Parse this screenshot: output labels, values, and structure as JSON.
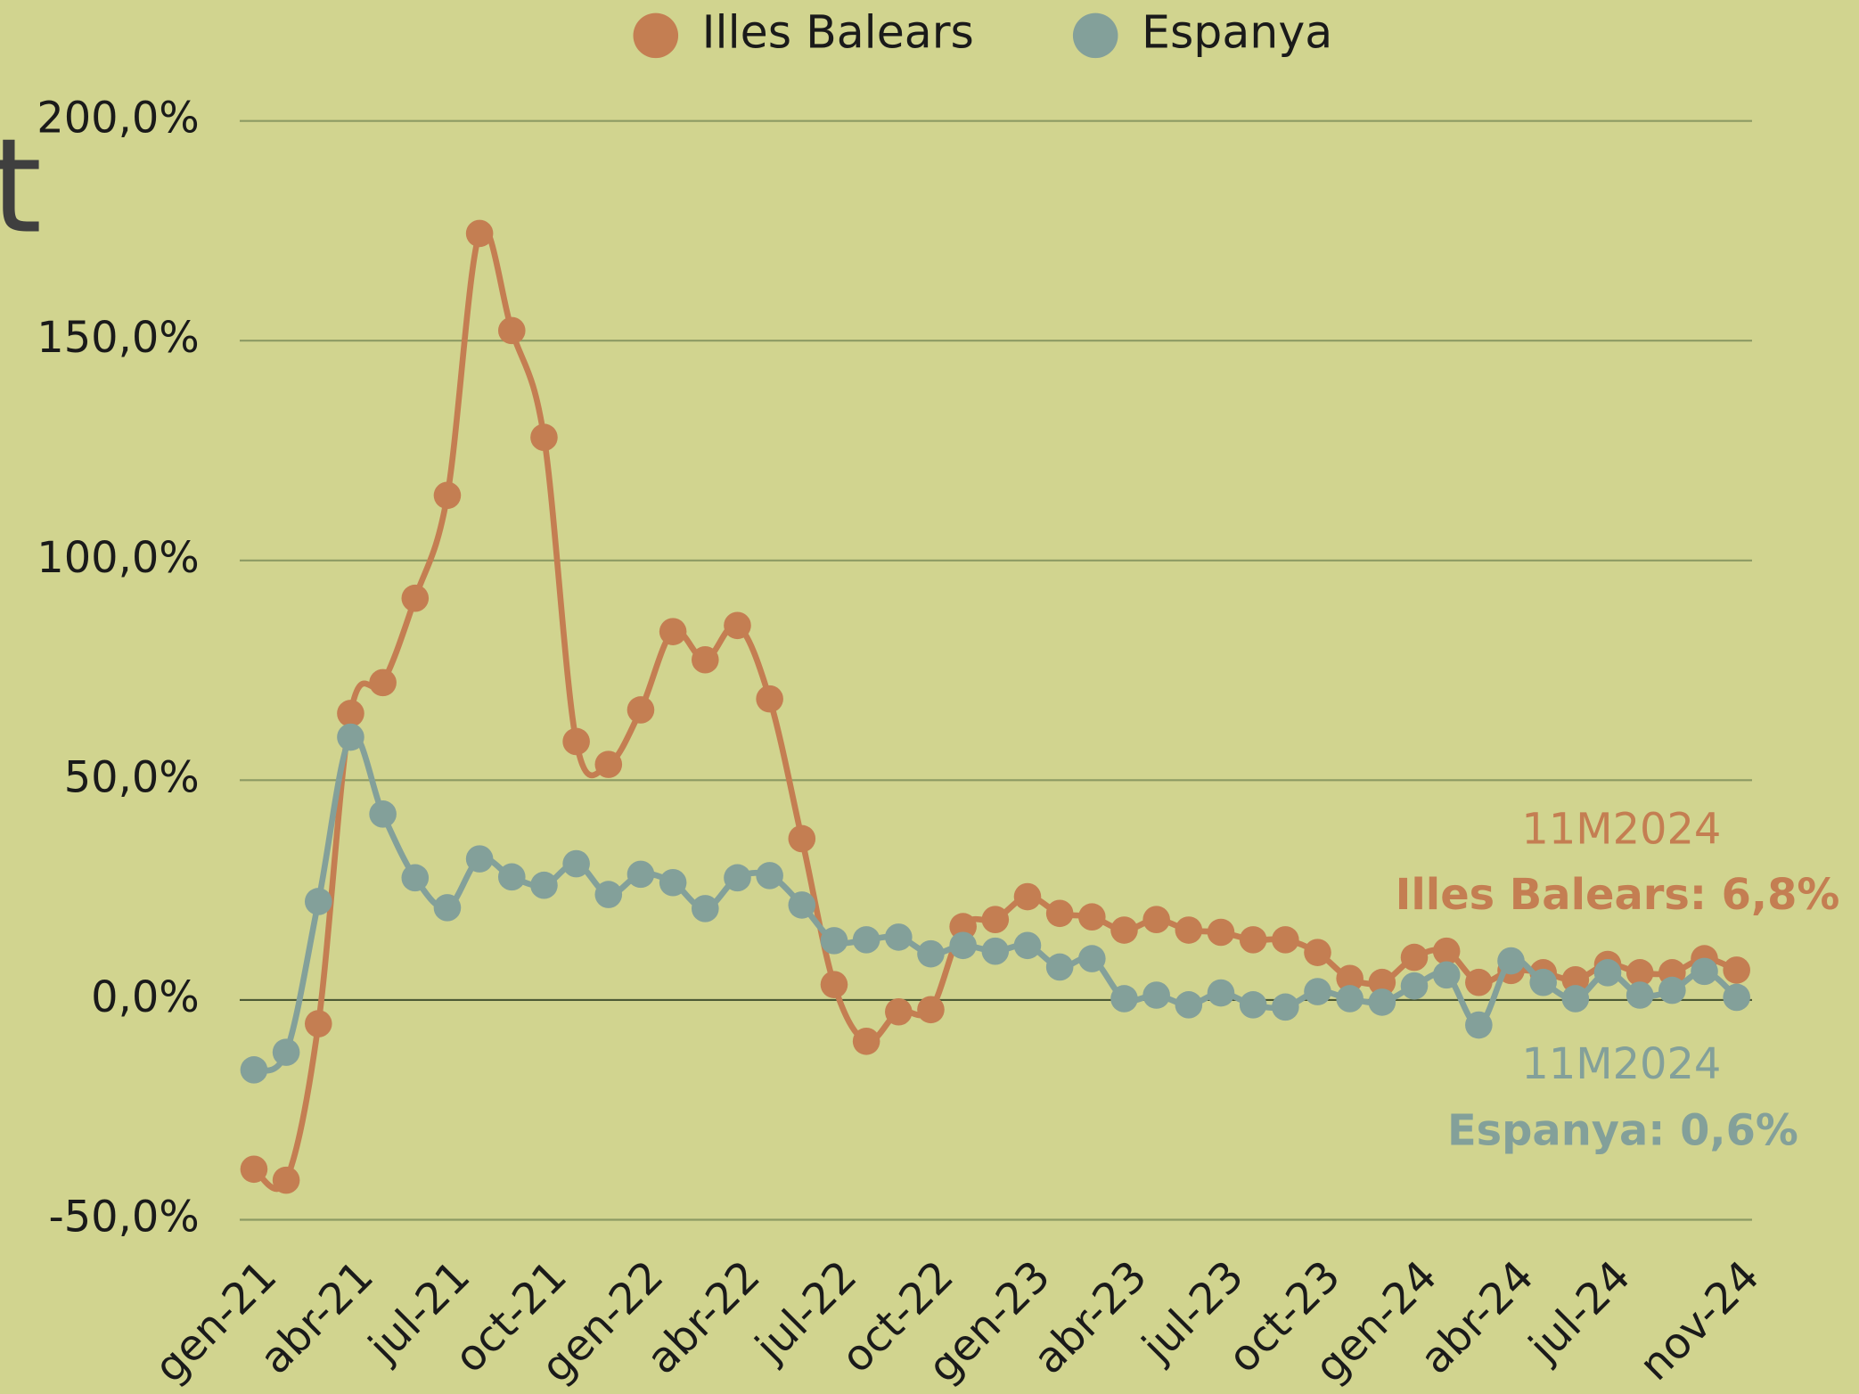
{
  "chart_data": {
    "type": "line",
    "title": "t",
    "categories": [
      "gen-21",
      null,
      null,
      "abr-21",
      null,
      null,
      "jul-21",
      null,
      null,
      "oct-21",
      null,
      null,
      "gen-22",
      null,
      null,
      "abr-22",
      null,
      null,
      "jul-22",
      null,
      null,
      "oct-22",
      null,
      null,
      "gen-23",
      null,
      null,
      "abr-23",
      null,
      null,
      "jul-23",
      null,
      null,
      "oct-23",
      null,
      null,
      "gen-24",
      null,
      null,
      "abr-24",
      null,
      null,
      "jul-24",
      null,
      null,
      null,
      "nov-24"
    ],
    "series": [
      {
        "name": "Illes Balears",
        "color": "#c47e52",
        "values": [
          -38.5,
          -41,
          -5.4,
          65.2,
          72.2,
          91.4,
          114.8,
          174.4,
          152.3,
          128,
          58.8,
          53.6,
          66,
          83.8,
          77.4,
          85.2,
          68.5,
          36.7,
          3.5,
          -9.4,
          -2.7,
          -2.2,
          16.7,
          18.3,
          23.5,
          19.7,
          18.9,
          15.9,
          18.3,
          15.9,
          15.4,
          13.7,
          13.7,
          10.8,
          4.9,
          4.0,
          9.7,
          11.1,
          4.0,
          6.7,
          6.2,
          4.6,
          8.1,
          6.2,
          6.2,
          9.4,
          6.8
        ]
      },
      {
        "name": "Espanya",
        "color": "#83a09a",
        "values": [
          -15.9,
          -11.9,
          22.4,
          59.8,
          42.3,
          27.8,
          21,
          32.1,
          28,
          26.1,
          31,
          24,
          28.6,
          26.7,
          20.8,
          27.8,
          28.3,
          21.6,
          13.5,
          13.7,
          14.3,
          10.5,
          12.4,
          11.1,
          12.4,
          7.5,
          9.4,
          0.3,
          1.1,
          -1.1,
          1.6,
          -1.1,
          -1.6,
          1.9,
          0.3,
          -0.5,
          3.2,
          5.7,
          -5.7,
          8.9,
          4,
          0.3,
          6.2,
          1.1,
          2.2,
          6.5,
          0.6
        ]
      }
    ],
    "ylim": [
      -50,
      200
    ],
    "yticks": [
      {
        "value": -50,
        "label": "-50,0%"
      },
      {
        "value": 0,
        "label": "0,0%"
      },
      {
        "value": 50,
        "label": "50,0%"
      },
      {
        "value": 100,
        "label": "100,0%"
      },
      {
        "value": 150,
        "label": "150,0%"
      },
      {
        "value": 200,
        "label": "200,0%"
      }
    ],
    "grid": true,
    "legend": "top",
    "annotations": [
      {
        "text": "11M2024",
        "color": "#c47e52"
      },
      {
        "text": "Illes Balears: 6,8%",
        "color": "#c47e52"
      },
      {
        "text": "11M2024",
        "color": "#83a09a"
      },
      {
        "text": "Espanya: 0,6%",
        "color": "#83a09a"
      }
    ]
  }
}
